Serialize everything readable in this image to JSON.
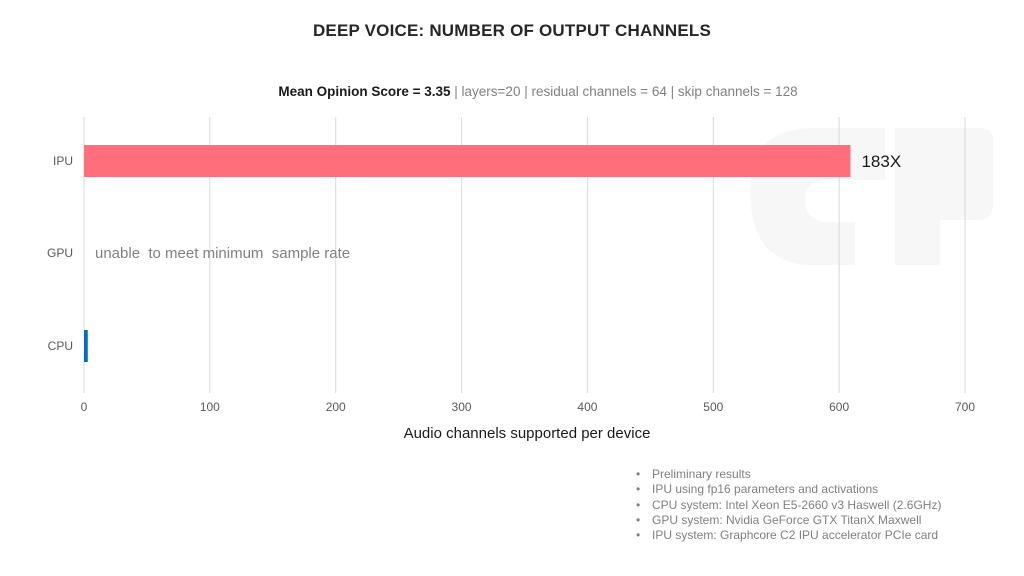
{
  "chart_data": {
    "type": "bar",
    "orientation": "horizontal",
    "title": "DEEP VOICE: NUMBER OF OUTPUT CHANNELS",
    "subtitle_bold": "Mean Opinion Score = 3.35",
    "subtitle_rest": " | layers=20 | residual channels = 64 | skip channels = 128",
    "categories": [
      "IPU",
      "GPU",
      "CPU"
    ],
    "values": [
      609,
      0,
      3
    ],
    "bar_colors": [
      "#ff6f7b",
      "#ff6f7b",
      "#0070c0"
    ],
    "data_labels": [
      "183X",
      "",
      ""
    ],
    "annotations": [
      "",
      "unable  to meet minimum  sample rate",
      ""
    ],
    "xlabel": "Audio channels supported per device",
    "xlim": [
      0,
      700
    ],
    "xticks": [
      0,
      100,
      200,
      300,
      400,
      500,
      600,
      700
    ],
    "grid": true
  },
  "notes": [
    "Preliminary results",
    "IPU using fp16 parameters and activations",
    "CPU system: Intel Xeon E5-2660 v3 Haswell (2.6GHz)",
    "GPU system: Nvidia GeForce GTX TitanX Maxwell",
    "IPU system: Graphcore C2 IPU accelerator PCIe card"
  ]
}
